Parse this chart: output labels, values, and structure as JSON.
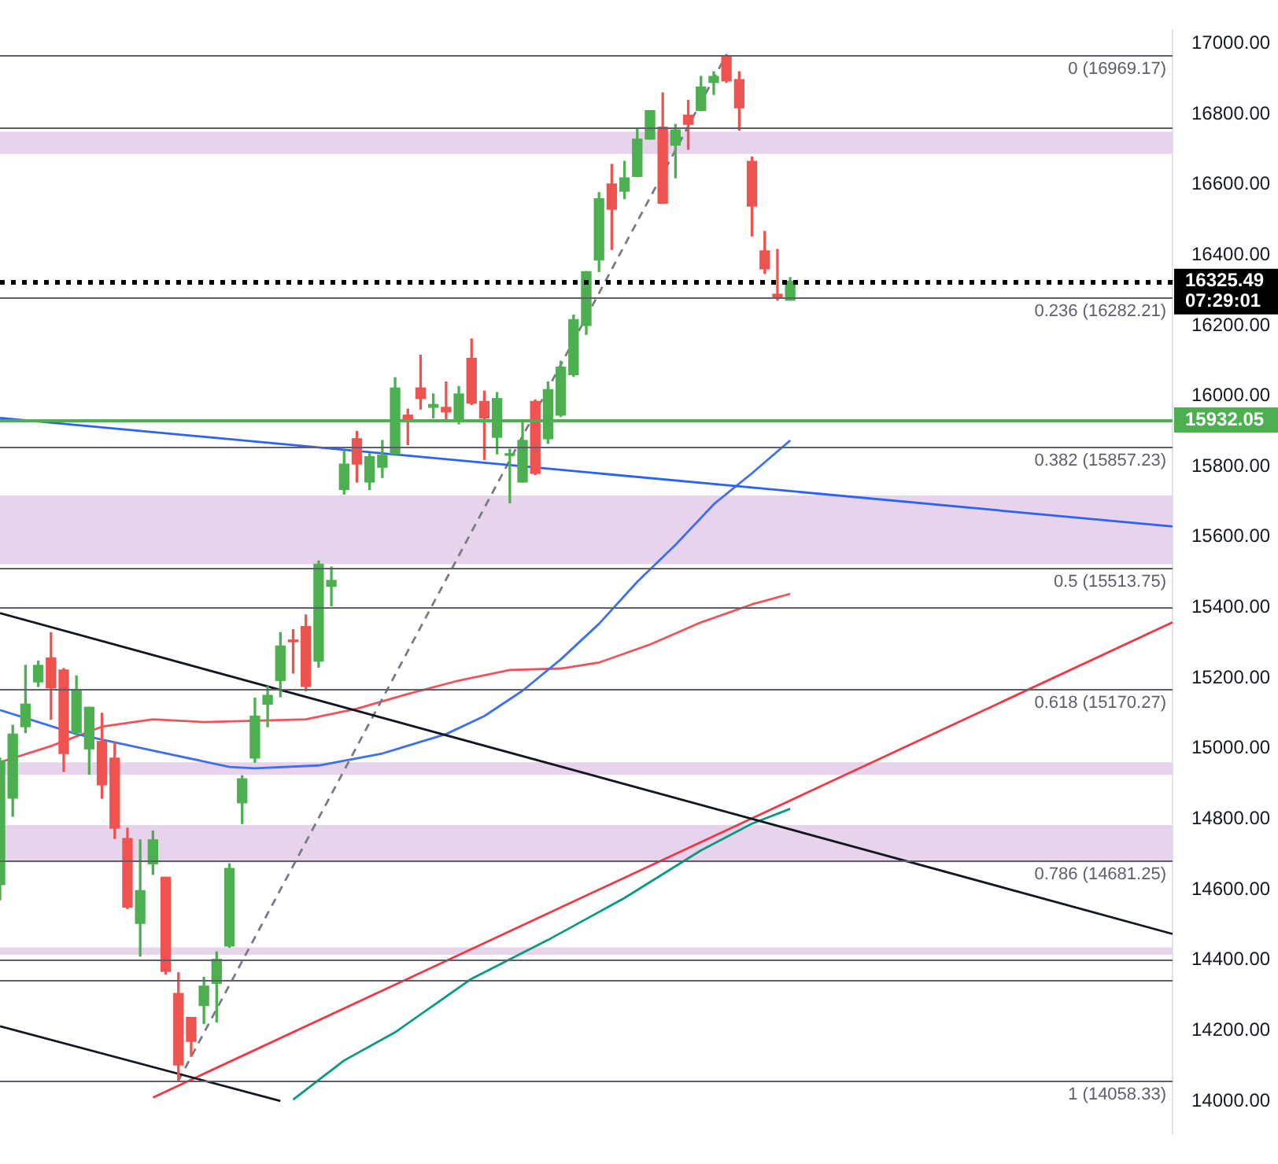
{
  "chart_data": {
    "type": "candlestick",
    "categories": [
      null,
      null,
      null,
      null,
      null,
      null,
      null,
      null,
      null,
      null,
      null,
      null,
      null,
      null,
      null,
      null,
      null,
      null,
      null,
      null,
      null,
      null,
      null,
      null,
      null,
      null,
      null,
      null,
      null,
      null,
      null,
      null,
      null,
      null,
      null,
      null,
      null,
      null,
      null,
      null,
      null,
      null,
      null,
      null,
      null,
      null,
      null,
      null,
      null,
      null,
      null,
      null,
      null,
      null,
      null,
      null,
      null,
      null,
      null,
      null,
      null,
      null,
      null,
      null,
      null,
      null,
      null,
      null,
      null,
      null,
      null,
      null,
      null,
      null,
      null,
      null,
      null,
      null,
      null,
      null,
      null,
      null,
      null,
      null,
      null,
      null,
      null,
      null,
      null,
      null,
      null,
      null,
      null
    ],
    "ohlc": [
      [
        14614,
        14973,
        14571,
        14965
      ],
      [
        14859,
        15066,
        14808,
        15041
      ],
      [
        15062,
        15236,
        15045,
        15126
      ],
      [
        15189,
        15248,
        15176,
        15236
      ],
      [
        15257,
        15329,
        15083,
        15172
      ],
      [
        15223,
        15227,
        14935,
        14986
      ],
      [
        15045,
        15206,
        15041,
        15168
      ],
      [
        14999,
        15117,
        14927,
        15117
      ],
      [
        15020,
        15100,
        14859,
        14897
      ],
      [
        14973,
        15016,
        14745,
        14774
      ],
      [
        14745,
        14774,
        14546,
        14550
      ],
      [
        14504,
        14741,
        14411,
        14597
      ],
      [
        14673,
        14766,
        14643,
        14741
      ],
      [
        14635,
        14635,
        14360,
        14368
      ],
      [
        14305,
        14364,
        14058,
        14102
      ],
      [
        14237,
        14237,
        14127,
        14169
      ],
      [
        14271,
        14351,
        14220,
        14326
      ],
      [
        14334,
        14423,
        14224,
        14402
      ],
      [
        14440,
        14673,
        14436,
        14660
      ],
      [
        14846,
        14923,
        14787,
        14914
      ],
      [
        14973,
        15143,
        14961,
        15092
      ],
      [
        15126,
        15176,
        15062,
        15151
      ],
      [
        15193,
        15329,
        15147,
        15291
      ],
      [
        15308,
        15337,
        15214,
        15303
      ],
      [
        15346,
        15379,
        15164,
        15176
      ],
      [
        15248,
        15532,
        15231,
        15523
      ],
      [
        15460,
        15515,
        15405,
        15477
      ],
      [
        15735,
        15845,
        15722,
        15807
      ],
      [
        15879,
        15900,
        15756,
        15807
      ],
      [
        15756,
        15836,
        15735,
        15828
      ],
      [
        15798,
        15874,
        15769,
        15832
      ],
      [
        15836,
        16052,
        15836,
        16023
      ],
      [
        15946,
        15963,
        15862,
        15930
      ],
      [
        16023,
        16116,
        15963,
        15993
      ],
      [
        15968,
        16006,
        15938,
        15976
      ],
      [
        15968,
        16040,
        15934,
        15955
      ],
      [
        15930,
        16027,
        15921,
        16006
      ],
      [
        16107,
        16162,
        15976,
        15980
      ],
      [
        15985,
        16014,
        15820,
        15938
      ],
      [
        15883,
        16010,
        15836,
        15993
      ],
      [
        15832,
        15849,
        15697,
        15836
      ],
      [
        15756,
        15925,
        15756,
        15874
      ],
      [
        15985,
        15989,
        15777,
        15781
      ],
      [
        15879,
        16040,
        15866,
        16018
      ],
      [
        15946,
        16099,
        15942,
        16082
      ],
      [
        16061,
        16230,
        16056,
        16217
      ],
      [
        16200,
        16353,
        16175,
        16353
      ],
      [
        16386,
        16577,
        16353,
        16560
      ],
      [
        16602,
        16657,
        16416,
        16530
      ],
      [
        16581,
        16666,
        16560,
        16619
      ],
      [
        16623,
        16759,
        16623,
        16729
      ],
      [
        16729,
        16810,
        16729,
        16810
      ],
      [
        16763,
        16860,
        16547,
        16547
      ],
      [
        16712,
        16771,
        16619,
        16755
      ],
      [
        16797,
        16839,
        16700,
        16771
      ],
      [
        16810,
        16907,
        16810,
        16877
      ],
      [
        16890,
        16920,
        16856,
        16907
      ],
      [
        16962,
        16969,
        16890,
        16894
      ],
      [
        16898,
        16920,
        16755,
        16818
      ],
      [
        16666,
        16678,
        16454,
        16539
      ],
      [
        16412,
        16467,
        16348,
        16361
      ],
      [
        16289,
        16416,
        16272,
        16281
      ],
      [
        16272,
        16336,
        16272,
        16325.49
      ],
      null,
      null,
      null,
      null,
      null,
      null,
      null,
      null,
      null,
      null,
      null,
      null,
      null,
      null,
      null,
      null,
      null,
      null,
      null,
      null,
      null,
      null,
      null,
      null,
      null,
      null,
      null,
      null,
      null,
      null
    ],
    "colors": [
      "#4caf50",
      "#4caf50",
      "#4caf50",
      "#4caf50",
      "#ef5350",
      "#ef5350",
      "#4caf50",
      "#4caf50",
      "#ef5350",
      "#ef5350",
      "#ef5350",
      "#4caf50",
      "#4caf50",
      "#ef5350",
      "#ef5350",
      "#ef5350",
      "#4caf50",
      "#4caf50",
      "#4caf50",
      "#4caf50",
      "#4caf50",
      "#4caf50",
      "#4caf50",
      "#ef5350",
      "#ef5350",
      "#4caf50",
      "#4caf50",
      "#4caf50",
      "#ef5350",
      "#4caf50",
      "#4caf50",
      "#4caf50",
      "#ef5350",
      "#ef5350",
      "#4caf50",
      "#ef5350",
      "#4caf50",
      "#ef5350",
      "#ef5350",
      "#4caf50",
      "#4caf50",
      "#4caf50",
      "#ef5350",
      "#4caf50",
      "#4caf50",
      "#4caf50",
      "#4caf50",
      "#4caf50",
      "#ef5350",
      "#4caf50",
      "#4caf50",
      "#4caf50",
      "#ef5350",
      "#4caf50",
      "#ef5350",
      "#4caf50",
      "#4caf50",
      "#ef5350",
      "#ef5350",
      "#ef5350",
      "#ef5350",
      "#ef5350",
      "#4caf50",
      null,
      null,
      null,
      null,
      null,
      null,
      null,
      null,
      null,
      null,
      null,
      null,
      null,
      null,
      null,
      null,
      null,
      null,
      null,
      null,
      null,
      null,
      null,
      null,
      null,
      null,
      null,
      null,
      null,
      null
    ],
    "series": [
      {
        "type": "line",
        "color": "#2962ff",
        "values": [
          15938,
          null,
          null,
          null,
          null,
          null,
          null,
          null,
          null,
          null,
          null,
          null,
          null,
          null,
          null,
          null,
          null,
          null,
          null,
          null,
          null,
          null,
          null,
          null,
          null,
          null,
          null,
          null,
          null,
          null,
          null,
          null,
          null,
          null,
          null,
          null,
          null,
          null,
          null,
          null,
          null,
          null,
          null,
          null,
          null,
          null,
          null,
          null,
          null,
          null,
          null,
          null,
          null,
          null,
          null,
          null,
          null,
          null,
          null,
          null,
          null,
          null,
          null,
          null,
          null,
          null,
          null,
          null,
          null,
          null,
          null,
          null,
          null,
          null,
          null,
          null,
          null,
          null,
          null,
          null,
          null,
          null,
          null,
          null,
          null,
          null,
          null,
          null,
          null,
          null,
          null,
          null,
          15630
        ]
      },
      {
        "type": "line",
        "color": "#131722",
        "values": [
          15384,
          null,
          null,
          null,
          null,
          null,
          null,
          null,
          null,
          null,
          null,
          null,
          null,
          null,
          null,
          null,
          null,
          null,
          null,
          null,
          null,
          null,
          null,
          null,
          null,
          null,
          null,
          null,
          null,
          null,
          null,
          null,
          null,
          null,
          null,
          null,
          null,
          null,
          null,
          null,
          null,
          null,
          null,
          null,
          null,
          null,
          null,
          null,
          null,
          null,
          null,
          null,
          null,
          null,
          null,
          null,
          null,
          null,
          null,
          null,
          null,
          null,
          null,
          null,
          null,
          null,
          null,
          null,
          null,
          null,
          null,
          null,
          null,
          null,
          null,
          null,
          null,
          null,
          null,
          null,
          null,
          null,
          null,
          null,
          null,
          null,
          null,
          null,
          null,
          null,
          null,
          null,
          14474
        ]
      },
      {
        "type": "line",
        "color": "#131722",
        "values": [
          14212,
          null,
          null,
          null,
          null,
          null,
          null,
          null,
          null,
          null,
          null,
          null,
          null,
          null,
          null,
          null,
          null,
          null,
          null,
          null,
          null,
          null,
          14000,
          null,
          null,
          null,
          null,
          null,
          null,
          null,
          null,
          null,
          null,
          null,
          null,
          null,
          null,
          null,
          null,
          null,
          null,
          null,
          null,
          null,
          null,
          null,
          null,
          null,
          null,
          null,
          null,
          null,
          null,
          null,
          null,
          null,
          null,
          null,
          null,
          null,
          null,
          null,
          null,
          null,
          null,
          null,
          null,
          null,
          null,
          null,
          null,
          null,
          null,
          null,
          null,
          null,
          null,
          null,
          null,
          null,
          null,
          null,
          null,
          null,
          null,
          null,
          null,
          null,
          null,
          null,
          null,
          null,
          null
        ]
      },
      {
        "type": "line",
        "color": "#f23645",
        "values": [
          null,
          null,
          null,
          null,
          null,
          null,
          null,
          null,
          null,
          null,
          null,
          null,
          14010,
          null,
          null,
          null,
          null,
          null,
          null,
          null,
          null,
          null,
          null,
          null,
          null,
          null,
          null,
          null,
          null,
          null,
          null,
          null,
          null,
          null,
          null,
          null,
          null,
          null,
          null,
          null,
          null,
          null,
          null,
          null,
          null,
          null,
          null,
          null,
          null,
          null,
          null,
          null,
          null,
          null,
          null,
          null,
          null,
          null,
          null,
          null,
          null,
          null,
          null,
          null,
          null,
          null,
          null,
          null,
          null,
          null,
          null,
          null,
          null,
          null,
          null,
          null,
          null,
          null,
          null,
          null,
          null,
          null,
          null,
          null,
          null,
          null,
          null,
          null,
          null,
          null,
          null,
          null,
          15358
        ]
      },
      {
        "type": "line",
        "color": "#787b86",
        "line_style": "dashed",
        "values": [
          null,
          null,
          null,
          null,
          null,
          null,
          null,
          null,
          null,
          null,
          null,
          null,
          null,
          null,
          14058,
          null,
          null,
          null,
          null,
          null,
          null,
          null,
          null,
          null,
          null,
          null,
          null,
          null,
          null,
          null,
          null,
          null,
          null,
          null,
          null,
          null,
          null,
          null,
          null,
          null,
          null,
          null,
          null,
          null,
          null,
          null,
          null,
          null,
          null,
          null,
          null,
          null,
          null,
          null,
          null,
          null,
          null,
          16969,
          null,
          null,
          null,
          null,
          null,
          null,
          null,
          null,
          null,
          null,
          null,
          null,
          null,
          null,
          null,
          null,
          null,
          null,
          null,
          null,
          null,
          null,
          null,
          null,
          null,
          null,
          null,
          null,
          null,
          null,
          null,
          null,
          null,
          null,
          null
        ]
      },
      {
        "type": "line",
        "color": "#3d6ff2",
        "values": [
          15109,
          null,
          null,
          null,
          null,
          null,
          15041,
          null,
          null,
          null,
          null,
          null,
          14994,
          null,
          null,
          null,
          null,
          null,
          14948,
          null,
          14944,
          null,
          null,
          null,
          null,
          14952,
          null,
          null,
          null,
          null,
          14986,
          null,
          null,
          null,
          null,
          15041,
          null,
          null,
          15092,
          null,
          null,
          15164,
          null,
          null,
          15253,
          null,
          null,
          15354,
          null,
          null,
          15473,
          null,
          null,
          15578,
          null,
          null,
          15693,
          null,
          null,
          15781,
          null,
          null,
          15874,
          null,
          null,
          null,
          null,
          null,
          null,
          null,
          null,
          null,
          null,
          null,
          null,
          null,
          null,
          null,
          null,
          null,
          null,
          null,
          null,
          null,
          null,
          null,
          null,
          null,
          null,
          null,
          null,
          null,
          null
        ]
      },
      {
        "type": "line",
        "color": "#f0525a",
        "values": [
          14961,
          null,
          null,
          null,
          15007,
          null,
          null,
          null,
          15062,
          null,
          null,
          null,
          15083,
          null,
          null,
          null,
          15075,
          null,
          null,
          null,
          15079,
          null,
          null,
          null,
          15083,
          null,
          null,
          null,
          15113,
          null,
          null,
          null,
          15155,
          null,
          null,
          null,
          15193,
          null,
          null,
          null,
          15223,
          null,
          null,
          null,
          15227,
          null,
          null,
          15244,
          null,
          null,
          null,
          15295,
          null,
          null,
          null,
          15358,
          null,
          null,
          null,
          15409,
          null,
          null,
          15439,
          null,
          null,
          null,
          null,
          null,
          null,
          null,
          null,
          null,
          null,
          null,
          null,
          null,
          null,
          null,
          null,
          null,
          null,
          null,
          null,
          null,
          null,
          null,
          null,
          null,
          null,
          null,
          null,
          null,
          null
        ]
      },
      {
        "type": "line",
        "color": "#089981",
        "values": [
          null,
          null,
          null,
          null,
          null,
          null,
          null,
          null,
          null,
          null,
          null,
          null,
          null,
          null,
          null,
          null,
          null,
          null,
          null,
          null,
          null,
          null,
          null,
          14004,
          null,
          null,
          null,
          14115,
          null,
          null,
          null,
          14195,
          null,
          null,
          null,
          null,
          null,
          14347,
          null,
          null,
          null,
          null,
          null,
          14457,
          null,
          null,
          null,
          null,
          null,
          14576,
          null,
          null,
          null,
          null,
          null,
          14711,
          null,
          null,
          null,
          14787,
          null,
          null,
          14829,
          null,
          null,
          null,
          null,
          null,
          null,
          null,
          null,
          null,
          null,
          null,
          null,
          null,
          null,
          null,
          null,
          null,
          null,
          null,
          null,
          null,
          null,
          null,
          null,
          null,
          null,
          null,
          null,
          null,
          null
        ]
      }
    ],
    "ylim": [
      13907,
      17038
    ],
    "yticks": [
      {
        "value": 14000,
        "label": "14000.00"
      },
      {
        "value": 14200,
        "label": "14200.00"
      },
      {
        "value": 14400,
        "label": "14400.00"
      },
      {
        "value": 14600,
        "label": "14600.00"
      },
      {
        "value": 14800,
        "label": "14800.00"
      },
      {
        "value": 15000,
        "label": "15000.00"
      },
      {
        "value": 15200,
        "label": "15200.00"
      },
      {
        "value": 15400,
        "label": "15400.00"
      },
      {
        "value": 15600,
        "label": "15600.00"
      },
      {
        "value": 15800,
        "label": "15800.00"
      },
      {
        "value": 16000,
        "label": "16000.00"
      },
      {
        "value": 16200,
        "label": "16200.00"
      },
      {
        "value": 16400,
        "label": "16400.00"
      },
      {
        "value": 16600,
        "label": "16600.00"
      },
      {
        "value": 16800,
        "label": "16800.00"
      },
      {
        "value": 17000,
        "label": "17000.00"
      }
    ],
    "grid": false,
    "legend": false,
    "ref_lines": [
      {
        "axis": "y",
        "value": 16969.17,
        "label": "0 (16969.17)"
      },
      {
        "axis": "y",
        "value": 16282.21,
        "label": "0.236 (16282.21)"
      },
      {
        "axis": "y",
        "value": 15857.23,
        "label": "0.382 (15857.23)"
      },
      {
        "axis": "y",
        "value": 15513.75,
        "label": "0.5 (15513.75)"
      },
      {
        "axis": "y",
        "value": 15170.27,
        "label": "0.618 (15170.27)"
      },
      {
        "axis": "y",
        "value": 14681.25,
        "label": "0.786 (14681.25)"
      },
      {
        "axis": "y",
        "value": 14058.33,
        "label": "1 (14058.33)"
      },
      {
        "axis": "y",
        "value": 16760,
        "label": null
      },
      {
        "axis": "y",
        "value": 14345,
        "label": null
      },
      {
        "axis": "y",
        "value": 15932.05,
        "label": "15932.05",
        "color": "#4caf50"
      },
      {
        "axis": "y",
        "value": 16325.49,
        "label": "16325.49",
        "color": "#000000",
        "line_style": "dotted"
      },
      {
        "axis": "y",
        "value": 15400,
        "label": null
      },
      {
        "axis": "y",
        "value": 14400,
        "label": null
      }
    ],
    "bands": [
      {
        "axis": "y",
        "from": 16687,
        "to": 16750,
        "color": "#e8d3ec"
      },
      {
        "axis": "y",
        "from": 15523,
        "to": 15718,
        "color": "#e8d3ec"
      },
      {
        "axis": "y",
        "from": 14926,
        "to": 14961,
        "color": "#e8d3ec"
      },
      {
        "axis": "y",
        "from": 14677,
        "to": 14783,
        "color": "#e8d3ec"
      },
      {
        "axis": "y",
        "from": 14415,
        "to": 14436,
        "color": "#e8d3ec"
      }
    ],
    "annotations": [
      "07:29:01"
    ]
  }
}
